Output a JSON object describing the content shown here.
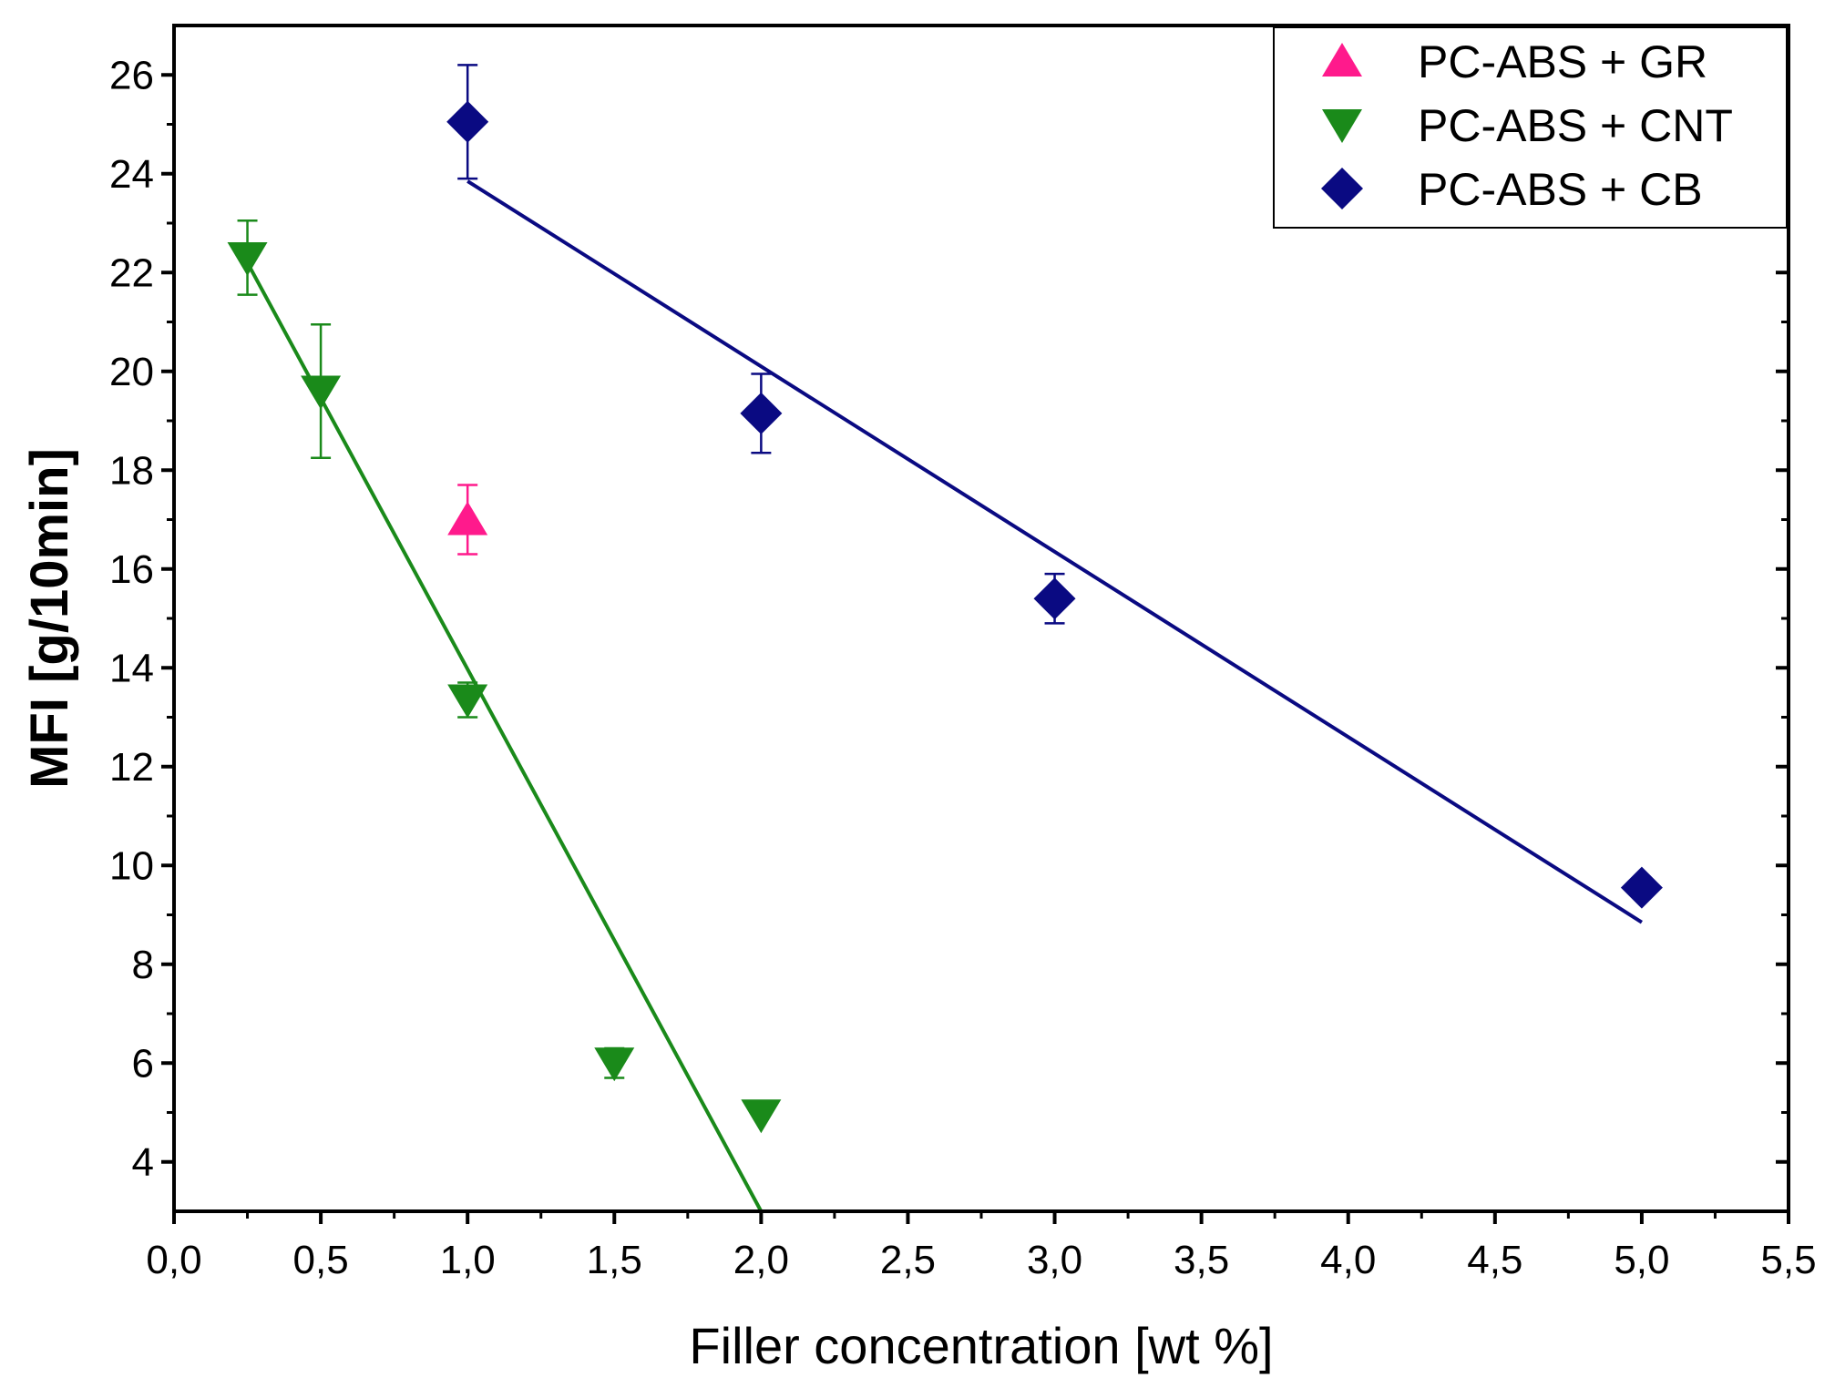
{
  "chart_data": {
    "type": "scatter",
    "title": "",
    "xlabel": "Filler concentration [wt %]",
    "ylabel": "MFI [g/10min]",
    "xlim": [
      0.0,
      5.5
    ],
    "ylim": [
      3.0,
      27.0
    ],
    "x_ticks": [
      0.0,
      0.5,
      1.0,
      1.5,
      2.0,
      2.5,
      3.0,
      3.5,
      4.0,
      4.5,
      5.0,
      5.5
    ],
    "x_tick_labels": [
      "0,0",
      "0,5",
      "1,0",
      "1,5",
      "2,0",
      "2,5",
      "3,0",
      "3,5",
      "4,0",
      "4,5",
      "5,0",
      "5,5"
    ],
    "y_ticks": [
      4,
      6,
      8,
      10,
      12,
      14,
      16,
      18,
      20,
      22,
      24,
      26
    ],
    "y_tick_labels": [
      "4",
      "6",
      "8",
      "10",
      "12",
      "14",
      "16",
      "18",
      "20",
      "22",
      "24",
      "26"
    ],
    "grid": false,
    "legend_position": "top-right",
    "series": [
      {
        "name": "PC-ABS + GR",
        "marker": "triangle-up",
        "color": "#ff1a8c",
        "points": [
          {
            "x": 1.0,
            "y": 17.0,
            "err": 0.7
          }
        ]
      },
      {
        "name": "PC-ABS + CNT",
        "marker": "triangle-down",
        "color": "#1a8a1a",
        "points": [
          {
            "x": 0.25,
            "y": 22.3,
            "err": 0.75
          },
          {
            "x": 0.5,
            "y": 19.6,
            "err": 1.35
          },
          {
            "x": 1.0,
            "y": 13.35,
            "err": 0.35
          },
          {
            "x": 1.5,
            "y": 6.0,
            "err": 0.3
          },
          {
            "x": 2.0,
            "y": 4.95,
            "err": 0.0
          }
        ],
        "fit": {
          "x": [
            0.25,
            2.0
          ],
          "y": [
            22.2,
            3.0
          ]
        }
      },
      {
        "name": "PC-ABS + CB",
        "marker": "diamond",
        "color": "#0a0a82",
        "points": [
          {
            "x": 1.0,
            "y": 25.05,
            "err": 1.15
          },
          {
            "x": 2.0,
            "y": 19.15,
            "err": 0.8
          },
          {
            "x": 3.0,
            "y": 15.4,
            "err": 0.5
          },
          {
            "x": 5.0,
            "y": 9.55,
            "err": 0.15
          }
        ],
        "fit": {
          "x": [
            1.0,
            5.0
          ],
          "y": [
            23.85,
            8.85
          ]
        }
      }
    ]
  }
}
